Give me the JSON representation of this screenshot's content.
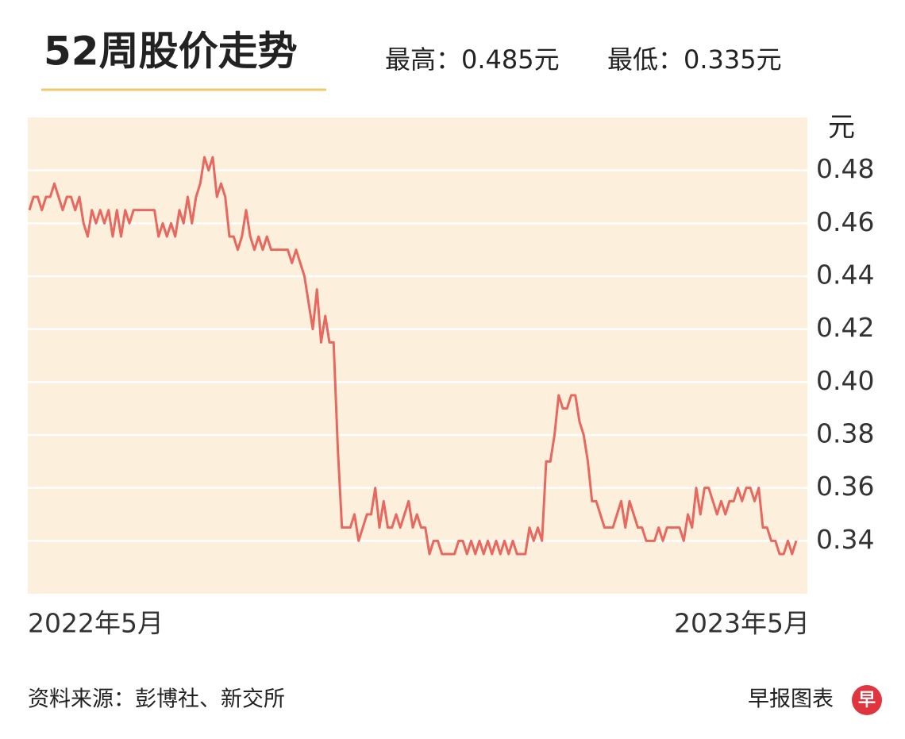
{
  "chart_data": {
    "type": "line",
    "title": "52周股价走势",
    "high_label": "最高：0.485元",
    "low_label": "最低：0.335元",
    "y_unit": "元",
    "source": "资料来源：彭博社、新交所",
    "credit": "早报图表",
    "logo": "早",
    "color": "#e8675e",
    "grid": true,
    "ylim": [
      0.32,
      0.5
    ],
    "yticks": [
      0.34,
      0.36,
      0.38,
      {
        "value": 0.4,
        "label": "0.40"
      },
      0.42,
      0.44,
      0.46,
      0.48
    ],
    "categories": [
      "2022年5月",
      null,
      null,
      null,
      null,
      null,
      null,
      null,
      null,
      null,
      null,
      null,
      null,
      null,
      null,
      null,
      null,
      null,
      null,
      null,
      null,
      null,
      null,
      null,
      null,
      null,
      null,
      null,
      null,
      null,
      null,
      null,
      null,
      null,
      null,
      null,
      null,
      null,
      null,
      null,
      null,
      null,
      null,
      null,
      null,
      null,
      null,
      null,
      null,
      null,
      null,
      null,
      null,
      null,
      null,
      null,
      null,
      null,
      null,
      null,
      null,
      null,
      null,
      null,
      null,
      null,
      null,
      null,
      null,
      null,
      null,
      null,
      null,
      null,
      null,
      null,
      null,
      null,
      null,
      null,
      null,
      null,
      null,
      null,
      null,
      null,
      null,
      null,
      null,
      null,
      null,
      null,
      null,
      null,
      null,
      null,
      null,
      null,
      null,
      null,
      null,
      null,
      null,
      null,
      null,
      null,
      null,
      null,
      null,
      null,
      null,
      null,
      null,
      null,
      null,
      null,
      null,
      null,
      null,
      null,
      null,
      null,
      null,
      null,
      null,
      null,
      null,
      null,
      null,
      null,
      null,
      null,
      null,
      null,
      null,
      null,
      null,
      null,
      null,
      null,
      null,
      null,
      null,
      null,
      null,
      null,
      null,
      null,
      null,
      null,
      null,
      null,
      null,
      null,
      null,
      null,
      null,
      null,
      null,
      null,
      null,
      null,
      null,
      null,
      null,
      null,
      null,
      null,
      null,
      null,
      null,
      null,
      null,
      null,
      null,
      null,
      null,
      null,
      null,
      null,
      null,
      null,
      null,
      null,
      "2023年5月"
    ],
    "values": [
      0.465,
      0.47,
      0.47,
      0.465,
      0.47,
      0.47,
      0.475,
      0.47,
      0.465,
      0.47,
      0.47,
      0.465,
      0.47,
      0.46,
      0.455,
      0.465,
      0.46,
      0.465,
      0.46,
      0.465,
      0.455,
      0.465,
      0.455,
      0.465,
      0.46,
      0.465,
      0.465,
      0.465,
      0.465,
      0.465,
      0.465,
      0.455,
      0.46,
      0.455,
      0.46,
      0.455,
      0.465,
      0.46,
      0.47,
      0.46,
      0.47,
      0.475,
      0.485,
      0.48,
      0.485,
      0.47,
      0.475,
      0.47,
      0.455,
      0.455,
      0.45,
      0.455,
      0.465,
      0.455,
      0.45,
      0.455,
      0.45,
      0.455,
      0.45,
      0.45,
      0.45,
      0.45,
      0.45,
      0.445,
      0.45,
      0.445,
      0.44,
      0.43,
      0.42,
      0.435,
      0.415,
      0.425,
      0.415,
      0.415,
      0.375,
      0.345,
      0.345,
      0.345,
      0.35,
      0.34,
      0.345,
      0.35,
      0.35,
      0.36,
      0.345,
      0.355,
      0.345,
      0.345,
      0.35,
      0.345,
      0.35,
      0.355,
      0.345,
      0.35,
      0.345,
      0.345,
      0.335,
      0.34,
      0.34,
      0.335,
      0.335,
      0.335,
      0.335,
      0.34,
      0.34,
      0.335,
      0.34,
      0.335,
      0.34,
      0.335,
      0.34,
      0.335,
      0.34,
      0.335,
      0.34,
      0.335,
      0.34,
      0.335,
      0.335,
      0.335,
      0.345,
      0.34,
      0.345,
      0.34,
      0.37,
      0.37,
      0.38,
      0.395,
      0.39,
      0.39,
      0.395,
      0.395,
      0.385,
      0.38,
      0.37,
      0.355,
      0.355,
      0.35,
      0.345,
      0.345,
      0.345,
      0.35,
      0.355,
      0.345,
      0.355,
      0.35,
      0.345,
      0.345,
      0.34,
      0.34,
      0.34,
      0.345,
      0.34,
      0.345,
      0.345,
      0.345,
      0.345,
      0.34,
      0.35,
      0.345,
      0.36,
      0.35,
      0.36,
      0.36,
      0.355,
      0.35,
      0.355,
      0.35,
      0.355,
      0.355,
      0.36,
      0.355,
      0.36,
      0.36,
      0.355,
      0.36,
      0.345,
      0.345,
      0.34,
      0.34,
      0.335,
      0.335,
      0.34,
      0.335,
      0.34
    ]
  }
}
